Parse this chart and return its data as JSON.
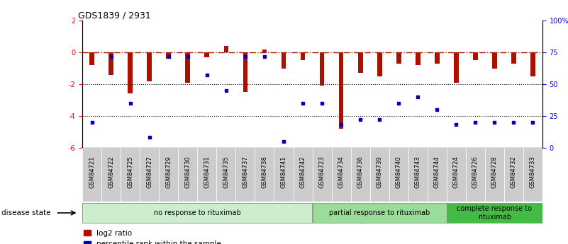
{
  "title": "GDS1839 / 2931",
  "samples": [
    "GSM84721",
    "GSM84722",
    "GSM84725",
    "GSM84727",
    "GSM84729",
    "GSM84730",
    "GSM84731",
    "GSM84735",
    "GSM84737",
    "GSM84738",
    "GSM84741",
    "GSM84742",
    "GSM84723",
    "GSM84734",
    "GSM84736",
    "GSM84739",
    "GSM84740",
    "GSM84743",
    "GSM84744",
    "GSM84724",
    "GSM84726",
    "GSM84728",
    "GSM84732",
    "GSM84733"
  ],
  "log2_ratio": [
    -0.8,
    -1.4,
    -2.6,
    -1.8,
    -0.4,
    -1.9,
    -0.3,
    0.4,
    -2.5,
    0.2,
    -1.0,
    -0.5,
    -2.1,
    -4.8,
    -1.3,
    -1.5,
    -0.7,
    -0.8,
    -0.7,
    -1.9,
    -0.5,
    -1.0,
    -0.7,
    -1.5
  ],
  "percentile_rank": [
    20,
    72,
    35,
    8,
    72,
    72,
    57,
    45,
    72,
    72,
    5,
    35,
    35,
    18,
    22,
    22,
    35,
    40,
    30,
    18,
    20,
    20,
    20,
    20
  ],
  "groups": [
    {
      "label": "no response to rituximab",
      "start": 0,
      "end": 12,
      "color": "#cceecc"
    },
    {
      "label": "partial response to rituximab",
      "start": 12,
      "end": 19,
      "color": "#99dd99"
    },
    {
      "label": "complete response to\nrituximab",
      "start": 19,
      "end": 24,
      "color": "#44bb44"
    }
  ],
  "bar_color_red": "#aa1100",
  "bar_color_blue": "#0000bb",
  "ylim_left": [
    -6,
    2
  ],
  "ylim_right": [
    0,
    100
  ],
  "yticks_left": [
    2,
    0,
    -2,
    -4,
    -6
  ],
  "yticks_right": [
    0,
    25,
    50,
    75,
    100
  ],
  "ylabel_right_labels": [
    "0",
    "25",
    "50",
    "75",
    "100%"
  ],
  "dotted_lines": [
    -2,
    -4
  ],
  "disease_state_label": "disease state",
  "tick_label_bg": "#cccccc",
  "group_border_color": "#888888"
}
